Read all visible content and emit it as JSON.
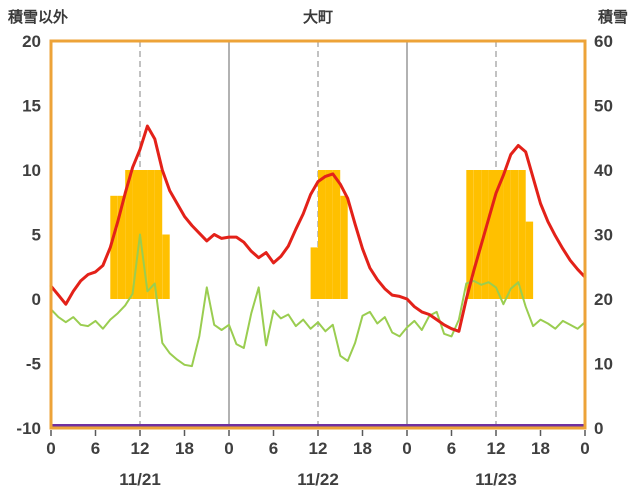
{
  "header": {
    "left_axis_title": "積雪以外",
    "chart_title": "大町",
    "right_axis_title": "積雪"
  },
  "chart_data": {
    "type": "combo",
    "title": "大町",
    "x_max": 72,
    "x_ticks": {
      "hours": [
        0,
        6,
        12,
        18,
        24,
        30,
        36,
        42,
        48,
        54,
        60,
        66,
        72
      ],
      "labels": [
        "0",
        "6",
        "12",
        "18",
        "0",
        "6",
        "12",
        "18",
        "0",
        "6",
        "12",
        "18",
        "0"
      ]
    },
    "date_labels": [
      {
        "hour": 12,
        "label": "11/21"
      },
      {
        "hour": 36,
        "label": "11/22"
      },
      {
        "hour": 60,
        "label": "11/23"
      }
    ],
    "left_axis": {
      "title": "積雪以外",
      "min": -10,
      "max": 20,
      "ticks": [
        20,
        15,
        10,
        5,
        0,
        -5,
        -10
      ]
    },
    "right_axis": {
      "title": "積雪",
      "min": 0,
      "max": 60,
      "ticks": [
        60,
        50,
        40,
        30,
        20,
        10,
        0
      ]
    },
    "gridlines": {
      "solid_hours": [
        24,
        48
      ],
      "dashed_hours": [
        12,
        36,
        60
      ]
    },
    "colors": {
      "frame": "#EDA338",
      "grid_solid": "#7f7f7f",
      "grid_dashed": "#999999",
      "text": "#3f3f3f",
      "tick": "#595959"
    },
    "series": [
      {
        "name": "orange-bars",
        "type": "bar",
        "axis": "left",
        "color": "#FFC000",
        "values": [
          0,
          0,
          0,
          0,
          0,
          0,
          0,
          0,
          8,
          8,
          10,
          10,
          10,
          10,
          10,
          5,
          0,
          0,
          0,
          0,
          0,
          0,
          0,
          0,
          0,
          0,
          0,
          0,
          0,
          0,
          0,
          0,
          0,
          0,
          0,
          4,
          10,
          10,
          10,
          8,
          0,
          0,
          0,
          0,
          0,
          0,
          0,
          0,
          0,
          0,
          0,
          0,
          0,
          0,
          0,
          0,
          10,
          10,
          10,
          10,
          10,
          10,
          10,
          10,
          6,
          0,
          0,
          0,
          0,
          0,
          0,
          0
        ]
      },
      {
        "name": "green-line",
        "type": "line",
        "axis": "left",
        "color": "#9ACD50",
        "width": 2,
        "values": [
          -0.8,
          -1.4,
          -1.8,
          -1.4,
          -2.0,
          -2.1,
          -1.7,
          -2.3,
          -1.6,
          -1.1,
          -0.5,
          0.4,
          5.0,
          0.6,
          1.2,
          -3.4,
          -4.2,
          -4.7,
          -5.1,
          -5.2,
          -2.9,
          0.9,
          -2.0,
          -2.4,
          -2.0,
          -3.5,
          -3.8,
          -1.1,
          0.9,
          -3.6,
          -0.9,
          -1.5,
          -1.2,
          -2.1,
          -1.6,
          -2.3,
          -1.8,
          -2.5,
          -2.0,
          -4.4,
          -4.8,
          -3.4,
          -1.3,
          -1.0,
          -1.9,
          -1.4,
          -2.6,
          -2.9,
          -2.2,
          -1.7,
          -2.4,
          -1.3,
          -1.0,
          -2.7,
          -2.9,
          -1.6,
          1.2,
          1.4,
          1.1,
          1.3,
          0.9,
          -0.4,
          0.8,
          1.3,
          -0.6,
          -2.1,
          -1.6,
          -1.9,
          -2.3,
          -1.7,
          -2.0,
          -2.3,
          -1.8
        ]
      },
      {
        "name": "red-line",
        "type": "line",
        "axis": "left",
        "color": "#E32119",
        "width": 3,
        "values": [
          1.0,
          0.3,
          -0.4,
          0.6,
          1.4,
          1.9,
          2.1,
          2.6,
          4.0,
          6.0,
          8.2,
          10.2,
          11.6,
          13.4,
          12.4,
          10.0,
          8.4,
          7.4,
          6.4,
          5.7,
          5.1,
          4.5,
          5.0,
          4.7,
          4.8,
          4.8,
          4.4,
          3.7,
          3.2,
          3.6,
          2.8,
          3.3,
          4.1,
          5.4,
          6.6,
          8.1,
          9.1,
          9.5,
          9.7,
          8.9,
          7.8,
          5.8,
          3.9,
          2.4,
          1.5,
          0.8,
          0.3,
          0.2,
          0.0,
          -0.6,
          -1.0,
          -1.2,
          -1.6,
          -2.0,
          -2.3,
          -2.5,
          0.0,
          2.2,
          4.2,
          6.2,
          8.2,
          9.6,
          11.2,
          11.9,
          11.4,
          9.4,
          7.4,
          6.0,
          4.9,
          3.9,
          3.0,
          2.3,
          1.7
        ]
      },
      {
        "name": "purple-line",
        "type": "constant-line",
        "axis": "right",
        "color": "#7030A0",
        "width": 3,
        "constant": 0
      }
    ]
  }
}
